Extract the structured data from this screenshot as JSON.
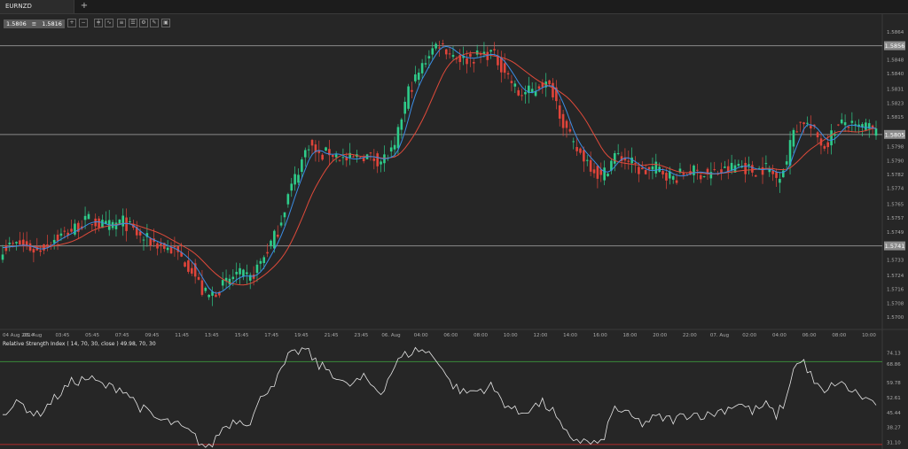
{
  "tab": {
    "symbol": "EURNZD",
    "add_icon": "plus-icon"
  },
  "toolbar": {
    "bid": "1.5806",
    "ask": "1.5816",
    "icons": [
      "zoom-in-icon",
      "zoom-out-icon",
      "candle-type-icon",
      "indicator-icon",
      "objects-icon",
      "template-icon",
      "settings-icon",
      "drawing-icon",
      "screenshot-icon"
    ]
  },
  "colors": {
    "bull": "#2ecc8a",
    "bear": "#e0443a",
    "ma_fast": "#3b8ee6",
    "ma_slow": "#e04a3a",
    "rsi": "#e6e6e6",
    "level_line": "#8a8a8a",
    "rsi_upper": "#3a8a3a",
    "rsi_lower": "#b02a2a"
  },
  "chart_data": [
    {
      "type": "candlestick",
      "yticks": [
        "1.5864",
        "1.5848",
        "1.5840",
        "1.5831",
        "1.5823",
        "1.5815",
        "1.5798",
        "1.5790",
        "1.5782",
        "1.5774",
        "1.5765",
        "1.5757",
        "1.5749",
        "1.5733",
        "1.5724",
        "1.5716",
        "1.5708",
        "1.5700"
      ],
      "ylim": [
        1.5695,
        1.5868
      ],
      "xticks": [
        "04 Aug 2014",
        "05. Aug",
        "03:45",
        "05:45",
        "07:45",
        "09:45",
        "11:45",
        "13:45",
        "15:45",
        "17:45",
        "19:45",
        "21:45",
        "23:45",
        "06. Aug",
        "04:00",
        "06:00",
        "08:00",
        "10:00",
        "12:00",
        "14:00",
        "16:00",
        "18:00",
        "20:00",
        "22:00",
        "07. Aug",
        "02:00",
        "04:00",
        "06:00",
        "08:00",
        "10:00"
      ],
      "levels": [
        {
          "value": 1.5856,
          "label": "1.5856"
        },
        {
          "value": 1.5805,
          "label": "1.5805"
        },
        {
          "value": 1.5741,
          "label": "1.5741"
        }
      ],
      "anchors": [
        [
          0,
          1.574
        ],
        [
          5,
          1.5742
        ],
        [
          10,
          1.5738
        ],
        [
          15,
          1.5745
        ],
        [
          20,
          1.575
        ],
        [
          25,
          1.5756
        ],
        [
          30,
          1.5752
        ],
        [
          35,
          1.5755
        ],
        [
          40,
          1.5746
        ],
        [
          45,
          1.5742
        ],
        [
          50,
          1.5738
        ],
        [
          55,
          1.5728
        ],
        [
          58,
          1.5715
        ],
        [
          60,
          1.5712
        ],
        [
          64,
          1.5718
        ],
        [
          68,
          1.5725
        ],
        [
          72,
          1.5722
        ],
        [
          76,
          1.5735
        ],
        [
          80,
          1.575
        ],
        [
          83,
          1.577
        ],
        [
          86,
          1.5785
        ],
        [
          89,
          1.58
        ],
        [
          92,
          1.5792
        ],
        [
          95,
          1.5795
        ],
        [
          100,
          1.579
        ],
        [
          105,
          1.5793
        ],
        [
          110,
          1.579
        ],
        [
          114,
          1.5796
        ],
        [
          116,
          1.5815
        ],
        [
          118,
          1.583
        ],
        [
          121,
          1.584
        ],
        [
          124,
          1.5852
        ],
        [
          127,
          1.5858
        ],
        [
          130,
          1.5852
        ],
        [
          134,
          1.5848
        ],
        [
          138,
          1.585
        ],
        [
          142,
          1.5852
        ],
        [
          146,
          1.5842
        ],
        [
          150,
          1.5828
        ],
        [
          154,
          1.583
        ],
        [
          157,
          1.5835
        ],
        [
          160,
          1.583
        ],
        [
          163,
          1.5812
        ],
        [
          166,
          1.5798
        ],
        [
          170,
          1.579
        ],
        [
          174,
          1.578
        ],
        [
          178,
          1.5793
        ],
        [
          182,
          1.579
        ],
        [
          186,
          1.5783
        ],
        [
          190,
          1.5786
        ],
        [
          195,
          1.578
        ],
        [
          200,
          1.5784
        ],
        [
          205,
          1.5782
        ],
        [
          210,
          1.5784
        ],
        [
          214,
          1.5788
        ],
        [
          218,
          1.5784
        ],
        [
          222,
          1.5786
        ],
        [
          225,
          1.578
        ],
        [
          228,
          1.579
        ],
        [
          230,
          1.5808
        ],
        [
          233,
          1.5813
        ],
        [
          236,
          1.5806
        ],
        [
          239,
          1.5798
        ],
        [
          242,
          1.5808
        ],
        [
          245,
          1.5812
        ],
        [
          248,
          1.5808
        ],
        [
          251,
          1.581
        ],
        [
          254,
          1.5806
        ]
      ],
      "ma_fast_period": 5,
      "ma_slow_period": 14
    },
    {
      "type": "line",
      "title": "Relative Strength Index ( 14, 70, 30, close ) 49.98, 70, 30",
      "yticks": [
        "74.13",
        "68.86",
        "59.78",
        "52.61",
        "45.44",
        "38.27",
        "31.10"
      ],
      "ylim": [
        29.5,
        77.0
      ],
      "levels": [
        70,
        30
      ],
      "anchors": [
        [
          0,
          46
        ],
        [
          5,
          50
        ],
        [
          10,
          44
        ],
        [
          15,
          52
        ],
        [
          20,
          60
        ],
        [
          25,
          62
        ],
        [
          30,
          58
        ],
        [
          35,
          57
        ],
        [
          40,
          48
        ],
        [
          45,
          42
        ],
        [
          50,
          40
        ],
        [
          55,
          35
        ],
        [
          58,
          30
        ],
        [
          60,
          28
        ],
        [
          64,
          38
        ],
        [
          68,
          42
        ],
        [
          72,
          41
        ],
        [
          76,
          55
        ],
        [
          80,
          62
        ],
        [
          83,
          72
        ],
        [
          86,
          75
        ],
        [
          88,
          76
        ],
        [
          92,
          68
        ],
        [
          95,
          66
        ],
        [
          100,
          58
        ],
        [
          105,
          62
        ],
        [
          110,
          55
        ],
        [
          114,
          68
        ],
        [
          116,
          72
        ],
        [
          118,
          74
        ],
        [
          121,
          76
        ],
        [
          124,
          74
        ],
        [
          127,
          70
        ],
        [
          130,
          60
        ],
        [
          134,
          55
        ],
        [
          138,
          56
        ],
        [
          142,
          58
        ],
        [
          146,
          50
        ],
        [
          150,
          45
        ],
        [
          154,
          48
        ],
        [
          157,
          50
        ],
        [
          160,
          46
        ],
        [
          163,
          36
        ],
        [
          166,
          33
        ],
        [
          170,
          31
        ],
        [
          174,
          30
        ],
        [
          178,
          48
        ],
        [
          182,
          44
        ],
        [
          186,
          40
        ],
        [
          190,
          43
        ],
        [
          195,
          42
        ],
        [
          200,
          45
        ],
        [
          205,
          44
        ],
        [
          210,
          47
        ],
        [
          214,
          50
        ],
        [
          218,
          46
        ],
        [
          222,
          49
        ],
        [
          225,
          44
        ],
        [
          228,
          52
        ],
        [
          230,
          68
        ],
        [
          233,
          70
        ],
        [
          236,
          60
        ],
        [
          239,
          54
        ],
        [
          242,
          60
        ],
        [
          245,
          58
        ],
        [
          248,
          55
        ],
        [
          251,
          52
        ],
        [
          254,
          50
        ]
      ]
    }
  ]
}
